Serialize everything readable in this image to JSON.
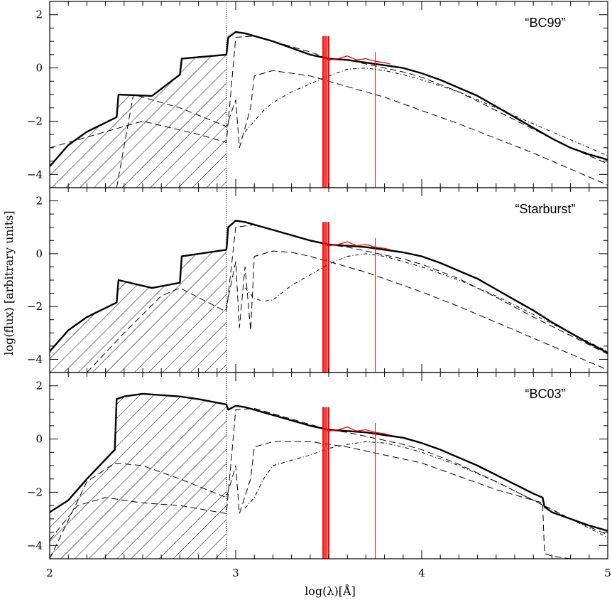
{
  "figure": {
    "xlabel": "log(λ)[Å]",
    "ylabel": "log(flux) [arbitrary units]",
    "colors": {
      "axes": "#000000",
      "models": "#000000",
      "observed": "#ff0000"
    }
  },
  "chart_data": [
    {
      "type": "line",
      "title": "“BC99”",
      "xlim": [
        2,
        5
      ],
      "ylim": [
        -4.5,
        2.5
      ],
      "xticks": [
        "2",
        "3",
        "4",
        "5"
      ],
      "yticks": [
        "2",
        "0",
        "−2",
        "−4"
      ],
      "hatched_region": {
        "x_range": [
          2,
          2.95
        ],
        "note": "EUV region below 2.95"
      },
      "series": [
        {
          "style": "solid-thick",
          "x": [
            2.0,
            2.1,
            2.2,
            2.36,
            2.37,
            2.55,
            2.7,
            2.71,
            2.95,
            2.96,
            3.0,
            3.05,
            3.1,
            3.2,
            3.3,
            3.4,
            3.5,
            3.6,
            3.7,
            3.8,
            3.9,
            4.0,
            4.1,
            4.2,
            4.3,
            4.4,
            4.5,
            4.6,
            4.7,
            4.8,
            4.9,
            5.0
          ],
          "y": [
            -3.7,
            -2.9,
            -2.4,
            -1.85,
            -1.0,
            -1.05,
            -0.25,
            0.35,
            0.5,
            1.15,
            1.35,
            1.3,
            1.2,
            1.0,
            0.75,
            0.5,
            0.35,
            0.3,
            0.2,
            0.1,
            0.0,
            -0.2,
            -0.45,
            -0.75,
            -1.05,
            -1.45,
            -1.85,
            -2.25,
            -2.65,
            -3.0,
            -3.25,
            -3.45
          ]
        },
        {
          "style": "dashed",
          "x": [
            2.0,
            2.2,
            2.5,
            2.8,
            2.95,
            3.0,
            3.1,
            3.2,
            3.3,
            3.4,
            3.5,
            3.6,
            3.7,
            3.8,
            3.9,
            4.0,
            4.2,
            4.4,
            4.6,
            4.8,
            5.0
          ],
          "y": [
            -3.0,
            -2.6,
            -2.0,
            -2.5,
            -2.8,
            1.15,
            1.2,
            1.0,
            0.8,
            0.6,
            0.35,
            0.3,
            0.15,
            0.0,
            -0.15,
            -0.35,
            -0.9,
            -1.6,
            -2.3,
            -3.0,
            -3.6
          ]
        },
        {
          "style": "dashed",
          "x": [
            2.36,
            2.45,
            2.55,
            2.7,
            2.95,
            3.0,
            3.02,
            3.08,
            3.1,
            3.2,
            3.4,
            3.5,
            3.6,
            3.7,
            3.8,
            3.9,
            4.0,
            4.2,
            4.4,
            4.6,
            4.8,
            5.0
          ],
          "y": [
            -4.5,
            -1.0,
            -1.2,
            -1.5,
            -2.2,
            -1.2,
            -3.0,
            -1.5,
            -0.3,
            -0.1,
            -0.3,
            -0.5,
            -0.7,
            -0.9,
            -1.1,
            -1.35,
            -1.6,
            -2.1,
            -2.65,
            -3.2,
            -3.8,
            -4.4
          ]
        },
        {
          "style": "dash-dot",
          "x": [
            3.05,
            3.1,
            3.15,
            3.2,
            3.3,
            3.4,
            3.5,
            3.6,
            3.7,
            3.8,
            3.9,
            4.0,
            4.2,
            4.4,
            4.6,
            4.8,
            5.0
          ],
          "y": [
            -2.4,
            -2.0,
            -1.6,
            -1.3,
            -0.9,
            -0.6,
            -0.3,
            -0.05,
            0.0,
            -0.1,
            -0.25,
            -0.45,
            -0.9,
            -1.5,
            -2.1,
            -2.7,
            -3.3
          ]
        },
        {
          "style": "observed",
          "x": [
            3.47,
            3.5,
            3.55,
            3.6,
            3.65,
            3.7,
            3.75,
            3.8,
            3.83
          ],
          "y": [
            0.4,
            0.3,
            0.35,
            0.45,
            0.3,
            0.35,
            0.25,
            0.2,
            0.15
          ]
        }
      ]
    },
    {
      "type": "line",
      "title": "“Starburst”",
      "xlim": [
        2,
        5
      ],
      "ylim": [
        -4.5,
        2.5
      ],
      "xticks": [
        "2",
        "3",
        "4",
        "5"
      ],
      "yticks": [
        "2",
        "0",
        "−2",
        "−4"
      ],
      "hatched_region": {
        "x_range": [
          2,
          2.95
        ],
        "note": "EUV region below 2.95"
      },
      "series": [
        {
          "style": "solid-thick",
          "x": [
            2.0,
            2.1,
            2.2,
            2.36,
            2.37,
            2.55,
            2.7,
            2.71,
            2.95,
            2.96,
            3.0,
            3.05,
            3.1,
            3.2,
            3.3,
            3.4,
            3.5,
            3.6,
            3.7,
            3.8,
            3.9,
            4.0,
            4.1,
            4.2,
            4.3,
            4.4,
            4.5,
            4.6,
            4.7,
            4.8,
            4.9,
            5.0
          ],
          "y": [
            -3.7,
            -2.9,
            -2.4,
            -1.85,
            -1.0,
            -1.3,
            -1.1,
            -0.1,
            0.15,
            1.0,
            1.25,
            1.2,
            1.1,
            0.9,
            0.7,
            0.5,
            0.35,
            0.3,
            0.25,
            0.15,
            0.05,
            -0.1,
            -0.35,
            -0.65,
            -0.95,
            -1.35,
            -1.75,
            -2.15,
            -2.6,
            -3.0,
            -3.4,
            -3.75
          ]
        },
        {
          "style": "dashed",
          "x": [
            2.2,
            2.4,
            2.6,
            2.7,
            2.95,
            3.0,
            3.1,
            3.2,
            3.3,
            3.4,
            3.5,
            3.6,
            3.7,
            3.8,
            3.9,
            4.0,
            4.2,
            4.4,
            4.6,
            4.8,
            5.0
          ],
          "y": [
            -4.5,
            -3.0,
            -1.6,
            -1.3,
            -2.2,
            1.0,
            1.1,
            0.9,
            0.7,
            0.5,
            0.35,
            0.25,
            0.1,
            -0.05,
            -0.2,
            -0.4,
            -0.95,
            -1.65,
            -2.4,
            -3.1,
            -3.8
          ]
        },
        {
          "style": "dashed",
          "x": [
            2.95,
            3.0,
            3.02,
            3.05,
            3.08,
            3.1,
            3.2,
            3.3,
            3.4,
            3.5,
            3.6,
            3.7,
            3.8,
            3.9,
            4.0,
            4.2,
            4.4,
            4.6,
            4.8,
            5.0
          ],
          "y": [
            -2.0,
            -0.3,
            -2.8,
            -0.5,
            -2.9,
            -0.1,
            0.1,
            0.05,
            -0.1,
            -0.3,
            -0.5,
            -0.7,
            -0.95,
            -1.2,
            -1.45,
            -2.0,
            -2.6,
            -3.2,
            -3.8,
            -4.4
          ]
        },
        {
          "style": "dash-dot",
          "x": [
            3.05,
            3.1,
            3.15,
            3.2,
            3.3,
            3.4,
            3.5,
            3.6,
            3.7,
            3.8,
            3.9,
            4.0,
            4.2,
            4.4,
            4.6,
            4.8,
            5.0
          ],
          "y": [
            -1.3,
            -1.7,
            -1.8,
            -1.75,
            -1.2,
            -0.8,
            -0.4,
            -0.1,
            0.0,
            -0.1,
            -0.3,
            -0.5,
            -1.0,
            -1.6,
            -2.3,
            -3.0,
            -3.7
          ]
        },
        {
          "style": "observed",
          "x": [
            3.47,
            3.5,
            3.55,
            3.6,
            3.65,
            3.7,
            3.75,
            3.8,
            3.83
          ],
          "y": [
            0.4,
            0.3,
            0.35,
            0.45,
            0.3,
            0.35,
            0.25,
            0.2,
            0.15
          ]
        }
      ]
    },
    {
      "type": "line",
      "title": "“BC03”",
      "xlim": [
        2,
        5
      ],
      "ylim": [
        -4.5,
        2.5
      ],
      "xticks": [
        "2",
        "3",
        "4",
        "5"
      ],
      "yticks": [
        "2",
        "0",
        "−2",
        "−4"
      ],
      "hatched_region": {
        "x_range": [
          2,
          2.95
        ],
        "note": "EUV region below 2.95"
      },
      "series": [
        {
          "style": "solid-thick",
          "x": [
            2.0,
            2.1,
            2.2,
            2.35,
            2.36,
            2.4,
            2.5,
            2.6,
            2.7,
            2.8,
            2.95,
            2.96,
            3.0,
            3.05,
            3.1,
            3.2,
            3.3,
            3.4,
            3.5,
            3.6,
            3.7,
            3.8,
            3.9,
            4.0,
            4.1,
            4.2,
            4.3,
            4.4,
            4.5,
            4.6,
            4.65,
            4.66,
            4.7,
            4.8,
            4.9,
            5.0
          ],
          "y": [
            -2.75,
            -2.3,
            -1.5,
            -0.4,
            1.5,
            1.6,
            1.7,
            1.65,
            1.6,
            1.5,
            1.3,
            1.1,
            1.25,
            1.2,
            1.1,
            0.9,
            0.7,
            0.5,
            0.35,
            0.3,
            0.25,
            0.15,
            0.05,
            -0.15,
            -0.4,
            -0.7,
            -1.0,
            -1.35,
            -1.7,
            -2.05,
            -2.2,
            -2.55,
            -2.75,
            -3.0,
            -3.25,
            -3.45
          ]
        },
        {
          "style": "dashed",
          "x": [
            2.0,
            2.15,
            2.3,
            2.5,
            2.7,
            2.95,
            3.0,
            3.1,
            3.2,
            3.3,
            3.4,
            3.5,
            3.6,
            3.7,
            3.8,
            3.9,
            4.0,
            4.2,
            4.4,
            4.6,
            4.8,
            5.0
          ],
          "y": [
            -3.8,
            -2.5,
            -2.2,
            -2.4,
            -2.5,
            -2.8,
            1.1,
            1.15,
            0.95,
            0.75,
            0.55,
            0.35,
            0.25,
            0.1,
            -0.05,
            -0.2,
            -0.4,
            -0.95,
            -1.6,
            -2.3,
            -3.0,
            -3.6
          ]
        },
        {
          "style": "dashed",
          "x": [
            2.0,
            2.2,
            2.35,
            2.5,
            2.7,
            2.95,
            3.0,
            3.02,
            3.08,
            3.1,
            3.2,
            3.4,
            3.6,
            3.8,
            4.0,
            4.2,
            4.4,
            4.6,
            4.65,
            4.66,
            4.7,
            4.8,
            5.0
          ],
          "y": [
            -4.5,
            -1.6,
            -0.9,
            -1.0,
            -1.5,
            -2.2,
            -1.0,
            -2.8,
            -1.5,
            -0.3,
            -0.1,
            -0.1,
            -0.3,
            -0.6,
            -0.9,
            -1.4,
            -1.9,
            -2.3,
            -2.4,
            -4.3,
            -4.4,
            -4.5,
            -4.6
          ]
        },
        {
          "style": "dash-dot",
          "x": [
            3.05,
            3.1,
            3.15,
            3.2,
            3.3,
            3.4,
            3.5,
            3.6,
            3.7,
            3.8,
            3.9,
            4.0,
            4.2,
            4.4,
            4.6,
            4.8,
            5.0
          ],
          "y": [
            -2.6,
            -2.2,
            -1.5,
            -1.0,
            -0.8,
            -0.6,
            -0.35,
            -0.2,
            -0.1,
            -0.15,
            -0.3,
            -0.5,
            -1.0,
            -1.6,
            -2.3,
            -3.0,
            -3.7
          ]
        },
        {
          "style": "observed",
          "x": [
            3.47,
            3.5,
            3.55,
            3.6,
            3.65,
            3.7,
            3.75,
            3.8,
            3.83
          ],
          "y": [
            0.4,
            0.3,
            0.35,
            0.45,
            0.3,
            0.35,
            0.25,
            0.2,
            0.15
          ]
        }
      ]
    }
  ]
}
